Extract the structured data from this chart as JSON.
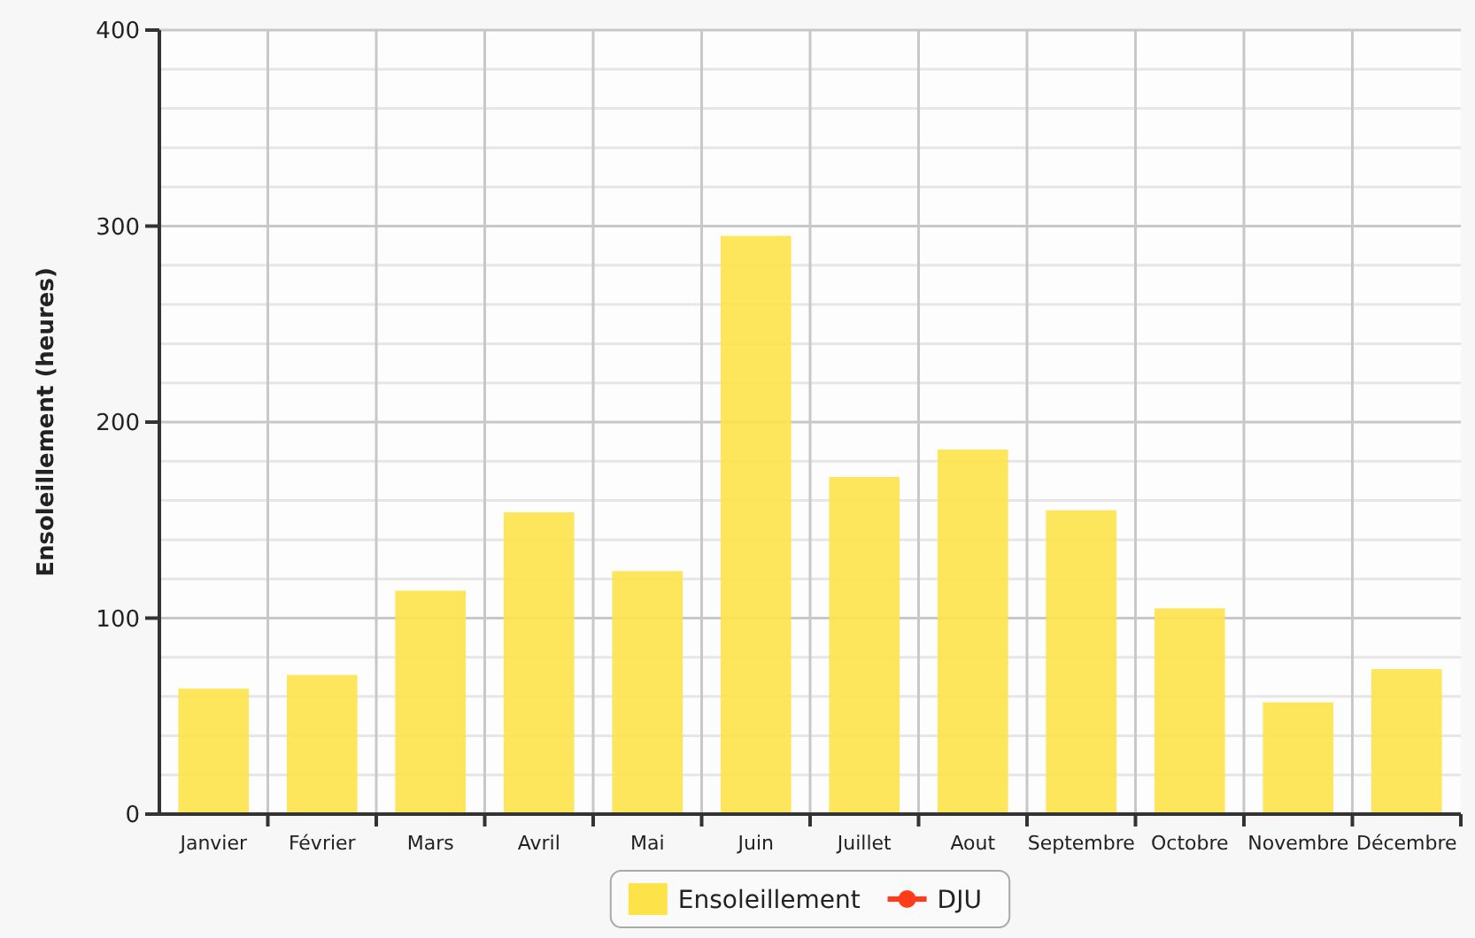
{
  "chart_data": {
    "type": "bar",
    "ylabel": "Ensoleillement (heures)",
    "categories": [
      "Janvier",
      "Février",
      "Mars",
      "Avril",
      "Mai",
      "Juin",
      "Juillet",
      "Aout",
      "Septembre",
      "Octobre",
      "Novembre",
      "Décembre"
    ],
    "series": [
      {
        "name": "Ensoleillement",
        "color": "#fde24a",
        "values": [
          64,
          71,
          114,
          154,
          124,
          295,
          172,
          186,
          155,
          105,
          57,
          74
        ]
      },
      {
        "name": "DJU",
        "type": "line",
        "color": "#ff3b1a",
        "values": [
          null,
          null,
          null,
          null,
          null,
          null,
          null,
          null,
          null,
          null,
          null,
          null
        ]
      }
    ],
    "ylim": [
      0,
      400
    ],
    "yticks": [
      0,
      {
        "value": 20,
        "label": null
      },
      {
        "value": 40,
        "label": null
      },
      {
        "value": 60,
        "label": null
      },
      {
        "value": 80,
        "label": null
      },
      100,
      {
        "value": 120,
        "label": null
      },
      {
        "value": 140,
        "label": null
      },
      {
        "value": 160,
        "label": null
      },
      {
        "value": 180,
        "label": null
      },
      200,
      {
        "value": 220,
        "label": null
      },
      {
        "value": 240,
        "label": null
      },
      {
        "value": 260,
        "label": null
      },
      {
        "value": 280,
        "label": null
      },
      300,
      {
        "value": 320,
        "label": null
      },
      {
        "value": 340,
        "label": null
      },
      {
        "value": 360,
        "label": null
      },
      {
        "value": 380,
        "label": null
      },
      400
    ],
    "grid": true,
    "legend": "bottom",
    "marker": "circle"
  }
}
